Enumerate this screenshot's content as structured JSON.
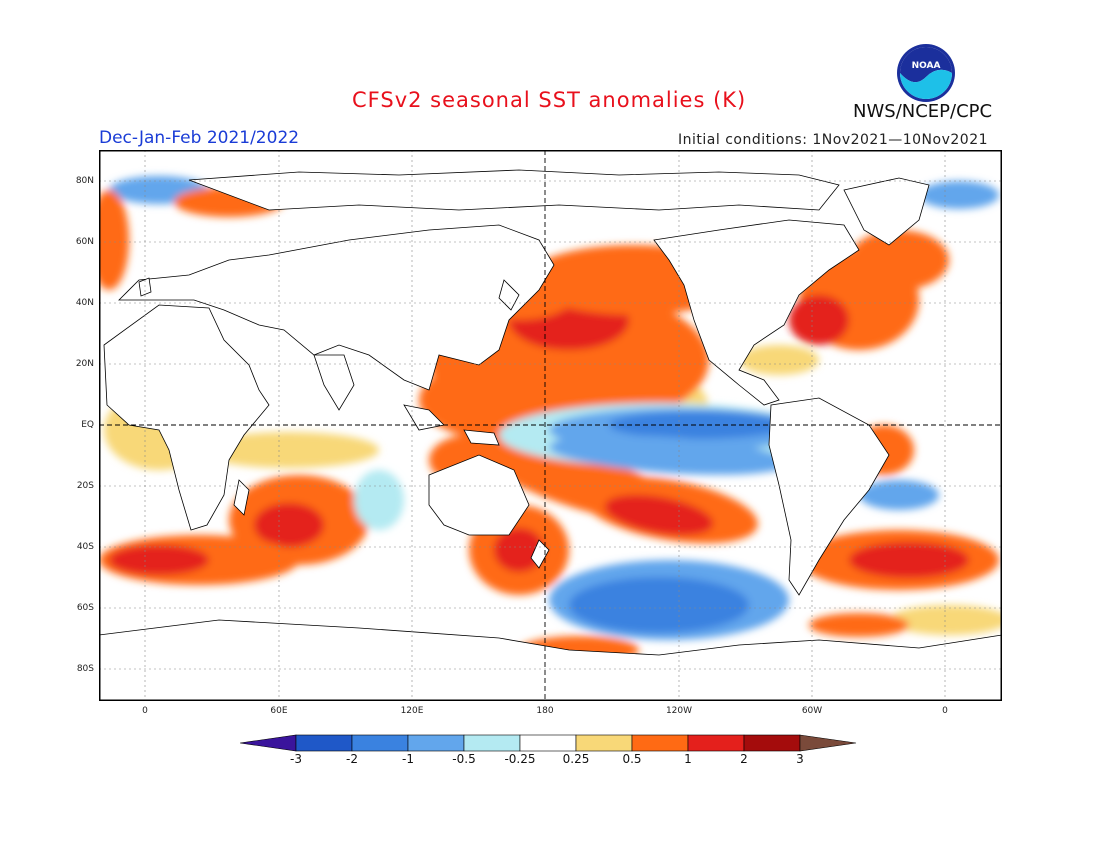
{
  "title": "CFSv2 seasonal SST anomalies (K)",
  "season": "Dec-Jan-Feb 2021/2022",
  "initial_conditions": "Initial conditions: 1Nov2021—10Nov2021",
  "agency": "NWS/NCEP/CPC",
  "logo_text": "NOAA",
  "lat_labels": [
    "80N",
    "60N",
    "40N",
    "20N",
    "EQ",
    "20S",
    "40S",
    "60S",
    "80S"
  ],
  "lon_labels": [
    "0",
    "60E",
    "120E",
    "180",
    "120W",
    "60W",
    "0"
  ],
  "colorbar": {
    "labels": [
      "-3",
      "-2",
      "-1",
      "-0.5",
      "-0.25",
      "0.25",
      "0.5",
      "1",
      "2",
      "3"
    ],
    "colors": [
      "#3a149c",
      "#1f58c8",
      "#3a82e0",
      "#62a6ec",
      "#b4eaf2",
      "#ffffff",
      "#f8d878",
      "#ff6a14",
      "#e4201c",
      "#a40c0c",
      "#7a4a3a"
    ]
  },
  "map": {
    "type": "filled-contour",
    "variable": "SST anomaly",
    "units": "K",
    "colors": {
      "land": "#ffffff",
      "coastline": "#000000",
      "grid": "#888888"
    }
  }
}
